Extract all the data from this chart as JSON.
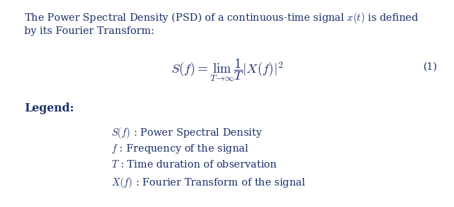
{
  "background_color": "#ffffff",
  "fig_width": 6.54,
  "fig_height": 2.99,
  "dpi": 100,
  "intro_text_line1": "The Power Spectral Density (PSD) of a continuous-time signal $x(t)$ is defined",
  "intro_text_line2": "by its Fourier Transform:",
  "equation": "$S(f) = \\lim_{T\\to\\infty} \\dfrac{1}{T} |X(f)|^2$",
  "equation_number": "(1)",
  "legend_title": "Legend:",
  "legend_items": [
    "$S(f)$ : Power Spectral Density",
    "$f$ : Frequency of the signal",
    "$T$ : Time duration of observation",
    "$X(f)$ : Fourier Transform of the signal"
  ],
  "text_color": "#1a2f6b",
  "font_size_body": 10.5,
  "font_size_equation": 13.5,
  "font_size_legend_title": 11.5,
  "font_size_legend_items": 10.5
}
